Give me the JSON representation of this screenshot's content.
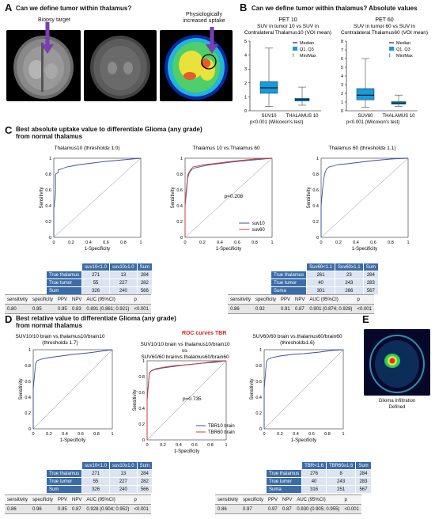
{
  "panelA": {
    "letter": "A",
    "title": "Can we define tumor within thalamus?",
    "biopsy_label": "Biopsy target",
    "uptake_label_1": "Physiologically",
    "uptake_label_2": "increased uptake"
  },
  "panelB": {
    "letter": "B",
    "title": "Can we define tumor within thalamus? Absolute values"
  },
  "panelC": {
    "letter": "C",
    "title_1": "Best absolute uptake value to differentiate Glioma (any grade)",
    "title_2": "from normal thalamus"
  },
  "panelD": {
    "letter": "D",
    "title_1": "Best relative value to differentiate Glioma (any grade)",
    "title_2": "from normal thalamus",
    "roc_title": "ROC curves TBR"
  },
  "panelE": {
    "letter": "E",
    "caption_1": "Glioma Infiltration",
    "caption_2": "Defined"
  },
  "roc_axes": {
    "ylabel": "Sensitivity",
    "xlabel": "1-Specificity",
    "ticks": [
      "0",
      "0.2",
      "0.4",
      "0.6",
      "0.8",
      "1"
    ]
  },
  "tableC1": {
    "header": [
      "",
      "suv10<1.0",
      "suv10≥1.0",
      "Sum"
    ],
    "rows": [
      [
        "True thalamus",
        "271",
        "13",
        "284"
      ],
      [
        "True tumor",
        "55",
        "227",
        "282"
      ],
      [
        "Sum",
        "326",
        "240",
        "566"
      ]
    ],
    "stat_header": [
      "sensitivity",
      "specificity",
      "PPV",
      "NPV",
      "AUC (95%CI)",
      "p"
    ],
    "stat_values": [
      "0.80",
      "0.95",
      "0.95",
      "0.83",
      "0.891 (0.861; 0.921)",
      "<0.001"
    ]
  },
  "tableC3": {
    "header": [
      "",
      "Suv60<1.1",
      "Suv60≥1.1",
      "Sum"
    ],
    "rows": [
      [
        "True thalamus",
        "261",
        "23",
        "284"
      ],
      [
        "True tumor",
        "40",
        "243",
        "283"
      ],
      [
        "Suma",
        "301",
        "266",
        "567"
      ]
    ],
    "stat_header": [
      "sensitivity",
      "specificity",
      "PPV",
      "NPV",
      "AUC (95%CI)",
      "p"
    ],
    "stat_values": [
      "0.86",
      "0.92",
      "0.91",
      "0.87",
      "0.901 (0.874; 0.928)",
      "<0.001"
    ]
  },
  "tableD1": {
    "header": [
      "",
      "suv10<1.0",
      "suv10≥1.0",
      "Sum"
    ],
    "rows": [
      [
        "True thalamus",
        "271",
        "13",
        "284"
      ],
      [
        "True tumor",
        "55",
        "227",
        "282"
      ],
      [
        "Sum",
        "326",
        "240",
        "566"
      ]
    ],
    "stat_header": [
      "sensitivity",
      "specificity",
      "PPV",
      "NPV",
      "AUC (95%CI)",
      "p"
    ],
    "stat_values": [
      "0.86",
      "0.96",
      "0.95",
      "0.87",
      "0.928 (0.904; 0.952)",
      "<0.001"
    ]
  },
  "tableD3": {
    "header": [
      "",
      "TBR<1.6",
      "TBR60≥1.6",
      "Sum"
    ],
    "rows": [
      [
        "True thalamus",
        "276",
        "8",
        "284"
      ],
      [
        "True tumor",
        "40",
        "243",
        "283"
      ],
      [
        "Suma",
        "316",
        "251",
        "567"
      ]
    ],
    "stat_header": [
      "sensitivity",
      "specificity",
      "PPV",
      "NPV",
      "AUC (95%CI)",
      "p"
    ],
    "stat_values": [
      "0.86",
      "0.97",
      "0.97",
      "0.87",
      "0.930 (0.905; 0.955)",
      "<0.001"
    ]
  },
  "chart_data": [
    {
      "type": "box",
      "title_1": "PET 10",
      "title_2": "SUV in tumor 10 vs SUV in",
      "title_3": "Contralateral Thalamus10 (VOI mean)",
      "categories": [
        "SUV10",
        "THALAMUS 10"
      ],
      "ylim": [
        0,
        5
      ],
      "yticks": [
        "0",
        "1",
        "2",
        "3",
        "4",
        "5"
      ],
      "boxes": [
        {
          "min": 0.3,
          "q1": 1.25,
          "median": 1.65,
          "q3": 2.1,
          "max": 4.5
        },
        {
          "min": 0.4,
          "q1": 0.7,
          "median": 0.8,
          "q3": 0.9,
          "max": 1.7
        }
      ],
      "legend": [
        "Median",
        "Q1, Q3",
        "Min/Max"
      ],
      "pvalue": "p<0.001 (Wilcoxon's test)",
      "color": "#1a9ad6"
    },
    {
      "type": "box",
      "title_1": "PET 60",
      "title_2": "SUV in tumor 60 vs SUV in",
      "title_3": "Contralateral Thalamus60 (VOI mean)",
      "categories": [
        "SUV60",
        "THALAMUS 10"
      ],
      "ylim": [
        0,
        8
      ],
      "yticks": [
        "0",
        "1",
        "2",
        "3",
        "4",
        "5",
        "6",
        "7",
        "8"
      ],
      "boxes": [
        {
          "min": 0.4,
          "q1": 1.25,
          "median": 1.8,
          "q3": 2.55,
          "max": 6.0
        },
        {
          "min": 0.5,
          "q1": 0.75,
          "median": 0.9,
          "q3": 1.05,
          "max": 1.8
        }
      ],
      "legend": [
        "Median",
        "Q1, Q3",
        "Min/Max"
      ],
      "pvalue": "p<0.001 (Wilcoxon's test)",
      "color": "#1a9ad6"
    },
    {
      "type": "line",
      "title": "Thalamus10 (threshold≥ 1.0)",
      "series": [
        {
          "name": "",
          "color": "#3a4fa0",
          "x": [
            0,
            0,
            0.02,
            0.02,
            0.05,
            0.05,
            0.1,
            0.15,
            0.2,
            0.3,
            0.45,
            0.6,
            0.8,
            1
          ],
          "y": [
            0,
            0.35,
            0.55,
            0.8,
            0.82,
            0.85,
            0.87,
            0.89,
            0.9,
            0.92,
            0.94,
            0.96,
            0.98,
            1
          ]
        }
      ]
    },
    {
      "type": "line",
      "title": "Thalamus 10 vs.Thalamus 60",
      "annotation": "p=0.208",
      "series": [
        {
          "name": "suv10",
          "color": "#3a4fa0",
          "x": [
            0,
            0,
            0.02,
            0.03,
            0.05,
            0.08,
            0.12,
            0.2,
            0.3,
            0.45,
            0.6,
            0.8,
            1
          ],
          "y": [
            0,
            0.4,
            0.62,
            0.75,
            0.82,
            0.86,
            0.88,
            0.9,
            0.92,
            0.94,
            0.96,
            0.98,
            1
          ]
        },
        {
          "name": "suv60",
          "color": "#d83a3a",
          "x": [
            0,
            0,
            0.02,
            0.03,
            0.06,
            0.09,
            0.14,
            0.22,
            0.32,
            0.46,
            0.62,
            0.8,
            1
          ],
          "y": [
            0,
            0.45,
            0.66,
            0.79,
            0.85,
            0.89,
            0.9,
            0.92,
            0.93,
            0.95,
            0.97,
            0.99,
            1
          ]
        }
      ]
    },
    {
      "type": "line",
      "title": "Thalamus 60 (threshold≥ 1.1)",
      "series": [
        {
          "name": "",
          "color": "#3a4fa0",
          "x": [
            0,
            0,
            0.02,
            0.04,
            0.06,
            0.09,
            0.13,
            0.2,
            0.3,
            0.45,
            0.6,
            0.8,
            1
          ],
          "y": [
            0,
            0.4,
            0.64,
            0.8,
            0.86,
            0.89,
            0.9,
            0.92,
            0.93,
            0.95,
            0.97,
            0.99,
            1
          ]
        }
      ]
    },
    {
      "type": "line",
      "title_1": "SUV10/10 brain vs.thalamus10/brain10",
      "title_2": "(threshold≥ 1.7)",
      "series": [
        {
          "name": "",
          "color": "#3a4fa0",
          "x": [
            0,
            0,
            0.02,
            0.03,
            0.05,
            0.1,
            0.2,
            0.35,
            0.5,
            0.7,
            0.85,
            1
          ],
          "y": [
            0,
            0.5,
            0.72,
            0.82,
            0.86,
            0.88,
            0.9,
            0.92,
            0.94,
            0.96,
            0.98,
            1
          ]
        }
      ]
    },
    {
      "type": "line",
      "title_1": "SUV10/10 brain vs thalamus10/brain10",
      "title_2": "vs.",
      "title_3": "SUV60/60 brainvs thalamus60/brain60",
      "annotation": "p=0.735",
      "series": [
        {
          "name": "TBR10 brain",
          "color": "#3a4fa0",
          "x": [
            0,
            0,
            0.02,
            0.03,
            0.05,
            0.1,
            0.2,
            0.35,
            0.5,
            0.7,
            0.85,
            1
          ],
          "y": [
            0,
            0.5,
            0.74,
            0.84,
            0.87,
            0.89,
            0.91,
            0.93,
            0.95,
            0.97,
            0.98,
            1
          ]
        },
        {
          "name": "TBR60 brain",
          "color": "#d83a3a",
          "x": [
            0,
            0,
            0.02,
            0.03,
            0.06,
            0.11,
            0.22,
            0.36,
            0.52,
            0.7,
            0.85,
            1
          ],
          "y": [
            0,
            0.52,
            0.76,
            0.85,
            0.88,
            0.9,
            0.92,
            0.94,
            0.95,
            0.97,
            0.99,
            1
          ]
        }
      ]
    },
    {
      "type": "line",
      "title_1": "SUV60/60 brain vs.thalamus60/brain60",
      "title_2": "(threshold≥1.6)",
      "series": [
        {
          "name": "",
          "color": "#3a4fa0",
          "x": [
            0,
            0,
            0.02,
            0.03,
            0.05,
            0.1,
            0.2,
            0.35,
            0.5,
            0.7,
            0.85,
            1
          ],
          "y": [
            0,
            0.5,
            0.74,
            0.85,
            0.88,
            0.9,
            0.92,
            0.94,
            0.95,
            0.97,
            0.99,
            1
          ]
        }
      ]
    }
  ]
}
